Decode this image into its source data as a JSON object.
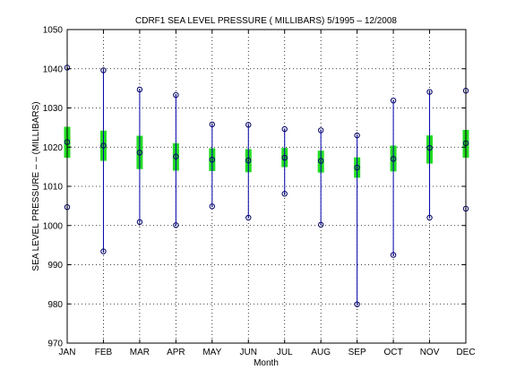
{
  "chart_data": {
    "type": "box",
    "title": "CDRF1  SEA LEVEL PRESSURE ( MILLIBARS) 5/1995 – 12/2008",
    "xlabel": "Month",
    "ylabel": "SEA LEVEL PRESSURE – – (MILLIBARS)",
    "ylim": [
      970,
      1050
    ],
    "yticks": [
      970,
      980,
      990,
      1000,
      1010,
      1020,
      1030,
      1040,
      1050
    ],
    "grid": true,
    "categories": [
      "JAN",
      "FEB",
      "MAR",
      "APR",
      "MAY",
      "JUN",
      "JUL",
      "AUG",
      "SEP",
      "OCT",
      "NOV",
      "DEC"
    ],
    "max": [
      1040.3,
      1039.6,
      1034.7,
      1033.3,
      1025.8,
      1025.7,
      1024.6,
      1024.3,
      1023.0,
      1031.9,
      1034.1,
      1034.4
    ],
    "upper": [
      1025.2,
      1024.2,
      1022.9,
      1021.0,
      1019.7,
      1019.5,
      1019.8,
      1019.1,
      1017.4,
      1020.4,
      1023.0,
      1024.4
    ],
    "mean": [
      1021.3,
      1020.4,
      1018.6,
      1017.6,
      1016.8,
      1016.6,
      1017.3,
      1016.5,
      1014.8,
      1017.0,
      1019.8,
      1021.0
    ],
    "lower": [
      1017.3,
      1016.5,
      1014.4,
      1014.0,
      1013.9,
      1013.6,
      1014.9,
      1013.5,
      1012.2,
      1013.8,
      1015.8,
      1017.3
    ],
    "min": [
      1004.7,
      993.4,
      1000.9,
      1000.1,
      1004.9,
      1002.0,
      1008.1,
      1000.2,
      979.9,
      992.5,
      1002.0,
      1004.3
    ],
    "colors": {
      "whisker": "#0000aa",
      "box": "#22dd22",
      "marker": "#000066",
      "grid": "#000000"
    }
  }
}
